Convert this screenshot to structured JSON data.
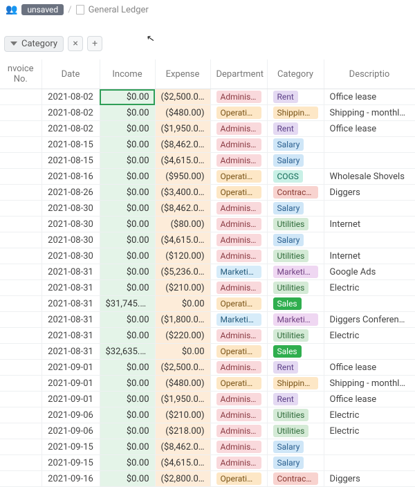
{
  "breadcrumb": {
    "unsaved_badge": "unsaved",
    "title": "General Ledger"
  },
  "toolbar": {
    "filter_label": "Category"
  },
  "tag_colors": {
    "Administrati...": {
      "bg": "#f9d9dc",
      "fg": "#8a3a42"
    },
    "Operations": {
      "bg": "#fde7c6",
      "fg": "#7a5417"
    },
    "Marketing": {
      "bg": "#d7ecf9",
      "fg": "#235a7c"
    },
    "Rent": {
      "bg": "#e4d9f2",
      "fg": "#5b3f87"
    },
    "Shipping C...": {
      "bg": "#fde7c6",
      "fg": "#7a5417"
    },
    "Salary": {
      "bg": "#cfe6f7",
      "fg": "#2a5f8f"
    },
    "COGS": {
      "bg": "#c9f0e6",
      "fg": "#156b57"
    },
    "Contractor": {
      "bg": "#f8d3cf",
      "fg": "#8a3a33"
    },
    "Utilities": {
      "bg": "#d4ead6",
      "fg": "#2f6b3a"
    },
    "Marketing_cat": {
      "bg": "#efd7f2",
      "fg": "#6f3f82"
    },
    "Sales": {
      "bg": "#2fae4e",
      "fg": "#ffffff"
    }
  },
  "columns": [
    "nvoice No.",
    "Date",
    "Income",
    "Expense",
    "Department",
    "Category",
    "Descriptio"
  ],
  "rows": [
    {
      "date": "2021-08-02",
      "income": "$0.00",
      "expense": "($2,500.00)",
      "dept": "Administrati...",
      "cat": "Rent",
      "desc": "Office lease",
      "selected": true
    },
    {
      "date": "2021-08-02",
      "income": "$0.00",
      "expense": "($480.00)",
      "dept": "Operations",
      "cat": "Shipping C...",
      "desc": "Shipping - monthly for July"
    },
    {
      "date": "2021-08-02",
      "income": "$0.00",
      "expense": "($1,950.00)",
      "dept": "Administrati...",
      "cat": "Rent",
      "desc": "Office lease"
    },
    {
      "date": "2021-08-15",
      "income": "$0.00",
      "expense": "($8,462.00)",
      "dept": "Administrati...",
      "cat": "Salary",
      "desc": ""
    },
    {
      "date": "2021-08-15",
      "income": "$0.00",
      "expense": "($4,615.00)",
      "dept": "Administrati...",
      "cat": "Salary",
      "desc": ""
    },
    {
      "date": "2021-08-16",
      "income": "$0.00",
      "expense": "($950.00)",
      "dept": "Operations",
      "cat": "COGS",
      "desc": "Wholesale Shovels"
    },
    {
      "date": "2021-08-26",
      "income": "$0.00",
      "expense": "($3,400.00)",
      "dept": "Operations",
      "cat": "Contractor",
      "desc": "Diggers"
    },
    {
      "date": "2021-08-30",
      "income": "$0.00",
      "expense": "($8,462.00)",
      "dept": "Administrati...",
      "cat": "Salary",
      "desc": ""
    },
    {
      "date": "2021-08-30",
      "income": "$0.00",
      "expense": "($80.00)",
      "dept": "Administrati...",
      "cat": "Utilities",
      "desc": "Internet"
    },
    {
      "date": "2021-08-30",
      "income": "$0.00",
      "expense": "($4,615.00)",
      "dept": "Administrati...",
      "cat": "Salary",
      "desc": ""
    },
    {
      "date": "2021-08-30",
      "income": "$0.00",
      "expense": "($120.00)",
      "dept": "Administrati...",
      "cat": "Utilities",
      "desc": "Internet"
    },
    {
      "date": "2021-08-31",
      "income": "$0.00",
      "expense": "($5,236.00)",
      "dept": "Marketing",
      "cat": "Marketing_cat",
      "desc": "Google Ads"
    },
    {
      "date": "2021-08-31",
      "income": "$0.00",
      "expense": "($210.00)",
      "dept": "Administrati...",
      "cat": "Utilities",
      "desc": "Electric"
    },
    {
      "date": "2021-08-31",
      "income": "$31,745.00",
      "expense": "$0.00",
      "dept": "Operations",
      "cat": "Sales",
      "desc": ""
    },
    {
      "date": "2021-08-31",
      "income": "$0.00",
      "expense": "($1,800.00)",
      "dept": "Marketing",
      "cat": "Marketing_cat",
      "desc": "Diggers Conference Booth"
    },
    {
      "date": "2021-08-31",
      "income": "$0.00",
      "expense": "($220.00)",
      "dept": "Administrati...",
      "cat": "Utilities",
      "desc": "Electric"
    },
    {
      "date": "2021-08-31",
      "income": "$32,635.00",
      "expense": "$0.00",
      "dept": "Operations",
      "cat": "Sales",
      "desc": ""
    },
    {
      "date": "2021-09-01",
      "income": "$0.00",
      "expense": "($2,500.00)",
      "dept": "Administrati...",
      "cat": "Rent",
      "desc": "Office lease"
    },
    {
      "date": "2021-09-01",
      "income": "$0.00",
      "expense": "($480.00)",
      "dept": "Operations",
      "cat": "Shipping C...",
      "desc": "Shipping - monthly for Aug"
    },
    {
      "date": "2021-09-01",
      "income": "$0.00",
      "expense": "($1,950.00)",
      "dept": "Administrati...",
      "cat": "Rent",
      "desc": "Office lease"
    },
    {
      "date": "2021-09-06",
      "income": "$0.00",
      "expense": "($210.00)",
      "dept": "Administrati...",
      "cat": "Utilities",
      "desc": "Electric"
    },
    {
      "date": "2021-09-06",
      "income": "$0.00",
      "expense": "($218.00)",
      "dept": "Administrati...",
      "cat": "Utilities",
      "desc": "Electric"
    },
    {
      "date": "2021-09-15",
      "income": "$0.00",
      "expense": "($8,462.00)",
      "dept": "Administrati...",
      "cat": "Salary",
      "desc": ""
    },
    {
      "date": "2021-09-15",
      "income": "$0.00",
      "expense": "($4,615.00)",
      "dept": "Administrati...",
      "cat": "Salary",
      "desc": ""
    },
    {
      "date": "2021-09-16",
      "income": "$0.00",
      "expense": "($2,800.00)",
      "dept": "Operations",
      "cat": "Contractor",
      "desc": "Diggers"
    }
  ],
  "cat_display": {
    "Marketing_cat": "Marketing"
  }
}
